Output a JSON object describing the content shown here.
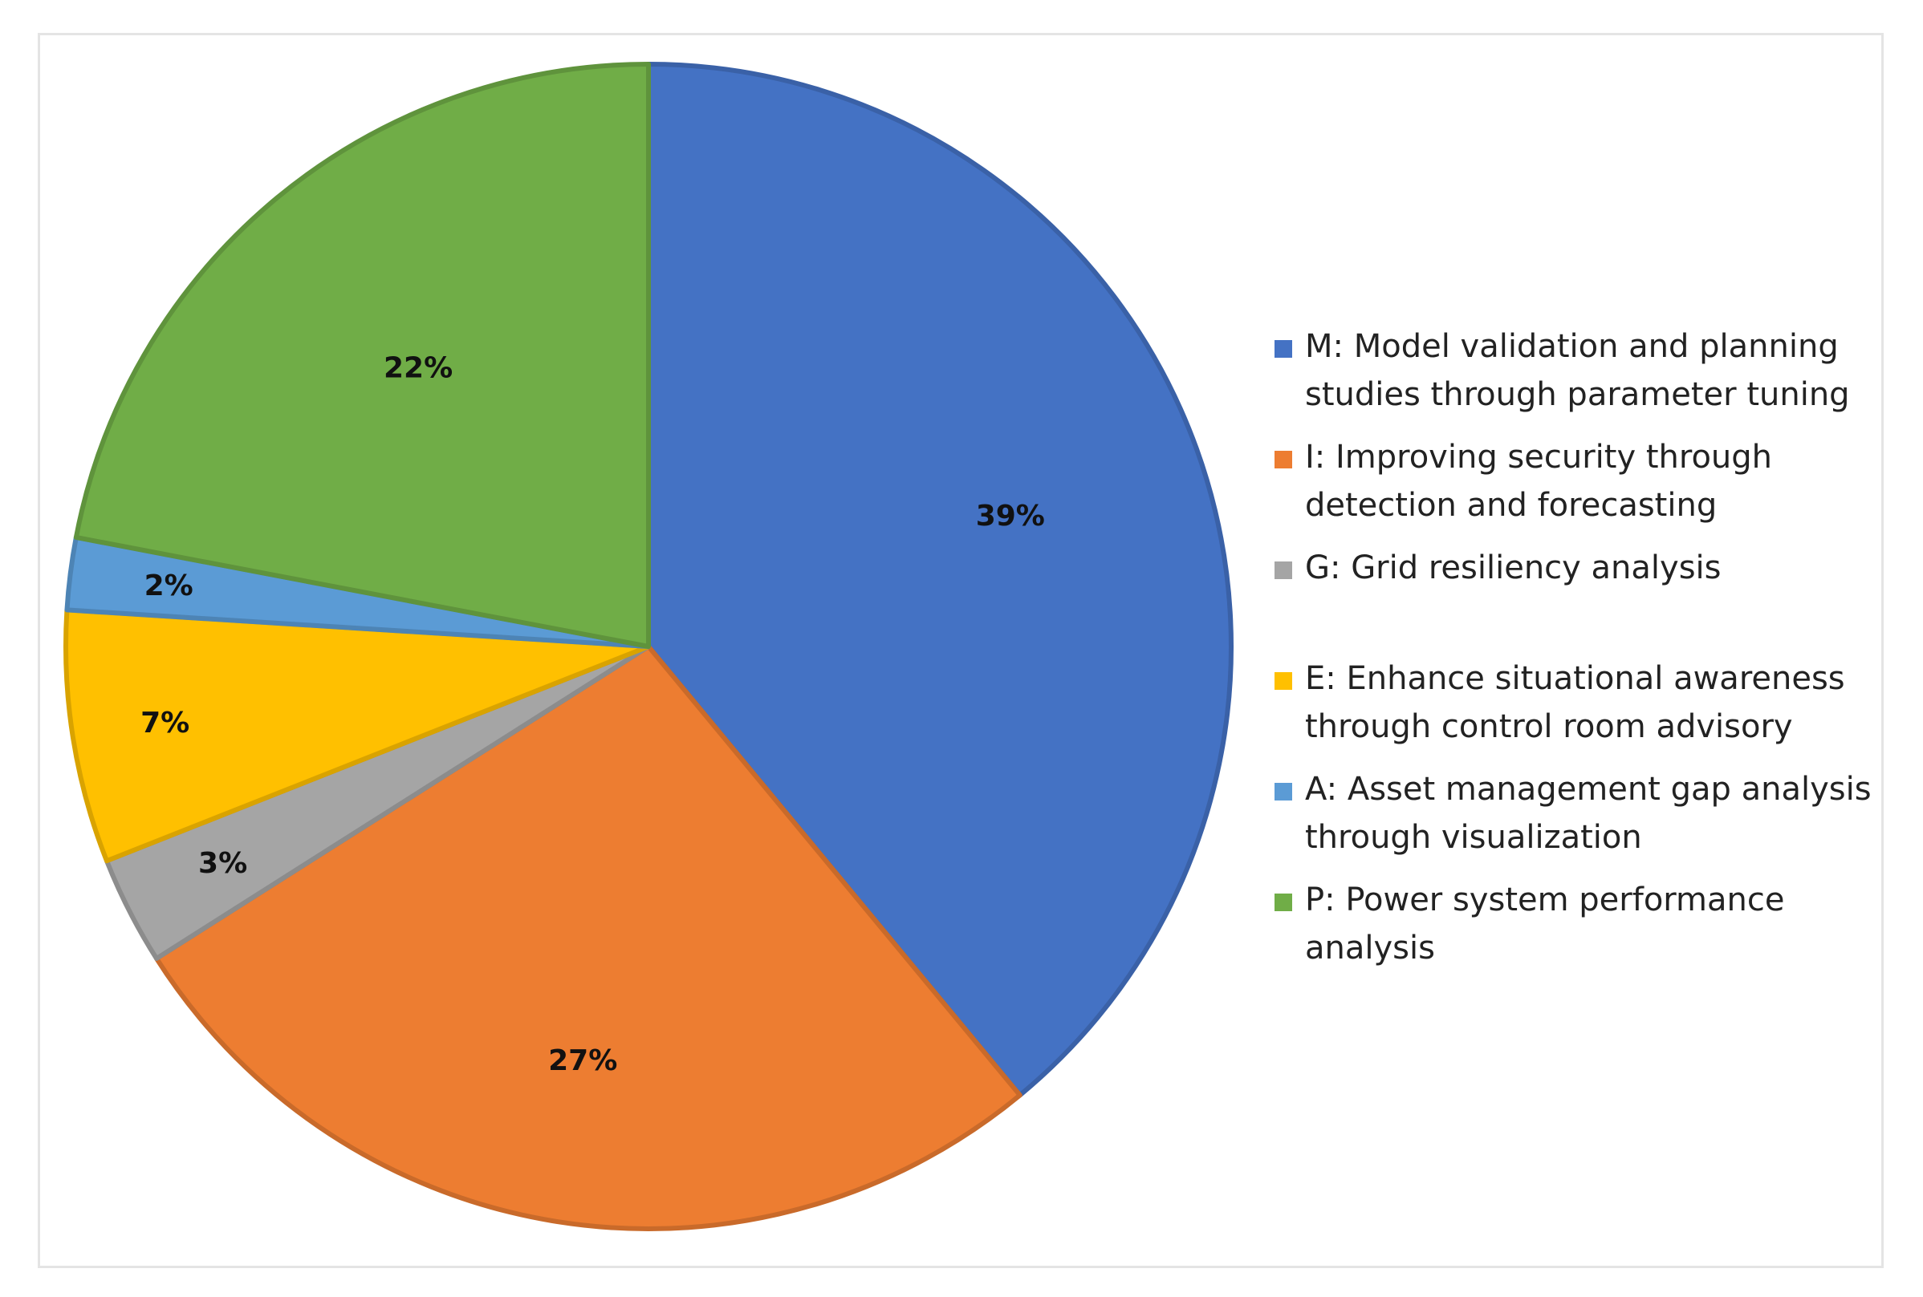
{
  "chart_data": {
    "type": "pie",
    "title": "",
    "slices": [
      {
        "code": "M",
        "label": "M: Model validation and planning studies through parameter tuning",
        "value": 39,
        "display": "39%",
        "color": "#4472C4"
      },
      {
        "code": "I",
        "label": "I: Improving security through detection and forecasting",
        "value": 27,
        "display": "27%",
        "color": "#ED7D31"
      },
      {
        "code": "G",
        "label": "G: Grid resiliency analysis",
        "value": 3,
        "display": "3%",
        "color": "#A5A5A5"
      },
      {
        "code": "E",
        "label": "E: Enhance situational awareness through control room advisory",
        "value": 7,
        "display": "7%",
        "color": "#FFC000"
      },
      {
        "code": "A",
        "label": "A: Asset management gap analysis through visualization",
        "value": 2,
        "display": "2%",
        "color": "#5B9BD5"
      },
      {
        "code": "P",
        "label": "P: Power system performance analysis",
        "value": 22,
        "display": "22%",
        "color": "#70AD47"
      }
    ],
    "start_angle_deg": 0,
    "direction": "clockwise",
    "legend_position": "right"
  }
}
